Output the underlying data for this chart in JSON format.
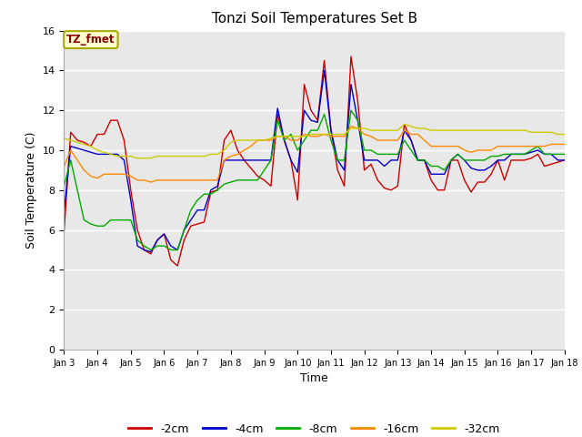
{
  "title": "Tonzi Soil Temperatures Set B",
  "xlabel": "Time",
  "ylabel": "Soil Temperature (C)",
  "ylim": [
    0,
    16
  ],
  "yticks": [
    0,
    2,
    4,
    6,
    8,
    10,
    12,
    14,
    16
  ],
  "bg_color": "#e8e8e8",
  "grid_color": "white",
  "annotation_text": "TZ_fmet",
  "annotation_color": "#8b0000",
  "annotation_bg": "#ffffcc",
  "legend_entries": [
    "-2cm",
    "-4cm",
    "-8cm",
    "-16cm",
    "-32cm"
  ],
  "line_colors": [
    "#cc0000",
    "#0000cc",
    "#00aa00",
    "#ff8800",
    "#cccc00"
  ],
  "x_tick_labels": [
    "Jan 3",
    "Jan 4",
    "Jan 5",
    "Jan 6",
    "Jan 7",
    "Jan 8",
    "Jan 9",
    "Jan 10",
    "Jan 11",
    "Jan 12",
    "Jan 13",
    "Jan 14",
    "Jan 15",
    "Jan 16",
    "Jan 17",
    "Jan 18"
  ],
  "series": {
    "neg2cm": [
      5.9,
      10.9,
      10.5,
      10.4,
      10.2,
      10.8,
      10.8,
      11.5,
      11.5,
      10.5,
      8.0,
      6.0,
      5.0,
      4.8,
      5.5,
      5.8,
      4.5,
      4.2,
      5.5,
      6.2,
      6.3,
      6.4,
      7.9,
      8.0,
      10.5,
      11.0,
      10.0,
      9.5,
      9.1,
      8.7,
      8.5,
      8.2,
      11.8,
      10.5,
      9.5,
      7.5,
      13.3,
      12.0,
      11.5,
      14.5,
      11.0,
      9.0,
      8.2,
      14.7,
      12.5,
      9.0,
      9.3,
      8.5,
      8.1,
      8.0,
      8.2,
      11.3,
      10.5,
      9.5,
      9.5,
      8.5,
      8.0,
      8.0,
      9.5,
      9.5,
      8.5,
      7.9,
      8.4,
      8.4,
      8.8,
      9.5,
      8.5,
      9.5,
      9.5,
      9.5,
      9.6,
      9.8,
      9.2,
      9.3,
      9.4,
      9.5
    ],
    "neg4cm": [
      6.9,
      10.2,
      10.1,
      10.0,
      9.9,
      9.8,
      9.8,
      9.8,
      9.8,
      9.5,
      7.5,
      5.2,
      5.0,
      4.9,
      5.5,
      5.8,
      5.2,
      5.0,
      6.0,
      6.5,
      7.0,
      7.0,
      8.0,
      8.2,
      9.5,
      9.5,
      9.5,
      9.5,
      9.5,
      9.5,
      9.5,
      9.5,
      12.1,
      10.5,
      9.5,
      8.9,
      12.0,
      11.5,
      11.4,
      14.0,
      11.0,
      9.5,
      9.0,
      13.3,
      11.5,
      9.5,
      9.5,
      9.5,
      9.2,
      9.5,
      9.5,
      11.0,
      10.5,
      9.5,
      9.5,
      8.8,
      8.8,
      8.8,
      9.5,
      9.8,
      9.5,
      9.1,
      9.0,
      9.0,
      9.2,
      9.5,
      9.5,
      9.8,
      9.8,
      9.8,
      9.9,
      10.0,
      9.8,
      9.8,
      9.5,
      9.5
    ],
    "neg8cm": [
      8.2,
      9.5,
      8.0,
      6.5,
      6.3,
      6.2,
      6.2,
      6.5,
      6.5,
      6.5,
      6.5,
      5.5,
      5.2,
      5.0,
      5.2,
      5.2,
      5.0,
      5.0,
      6.0,
      7.0,
      7.5,
      7.8,
      7.8,
      8.0,
      8.3,
      8.4,
      8.5,
      8.5,
      8.5,
      8.5,
      9.0,
      9.5,
      11.5,
      10.5,
      10.8,
      10.0,
      10.5,
      11.0,
      11.0,
      11.8,
      10.5,
      9.5,
      9.5,
      12.0,
      11.5,
      10.0,
      10.0,
      9.8,
      9.8,
      9.8,
      9.8,
      10.5,
      10.0,
      9.5,
      9.5,
      9.2,
      9.2,
      9.0,
      9.5,
      9.8,
      9.5,
      9.5,
      9.5,
      9.5,
      9.7,
      9.7,
      9.8,
      9.8,
      9.8,
      9.8,
      10.0,
      10.2,
      9.8,
      9.8,
      9.8,
      9.8
    ],
    "neg16cm": [
      9.2,
      10.0,
      9.5,
      9.0,
      8.7,
      8.6,
      8.8,
      8.8,
      8.8,
      8.8,
      8.7,
      8.5,
      8.5,
      8.4,
      8.5,
      8.5,
      8.5,
      8.5,
      8.5,
      8.5,
      8.5,
      8.5,
      8.5,
      8.5,
      9.5,
      9.7,
      9.8,
      10.0,
      10.2,
      10.5,
      10.5,
      10.5,
      10.7,
      10.7,
      10.5,
      10.5,
      10.8,
      10.7,
      10.7,
      10.8,
      10.7,
      10.7,
      10.7,
      11.2,
      11.1,
      10.8,
      10.7,
      10.5,
      10.5,
      10.5,
      10.5,
      11.0,
      10.8,
      10.8,
      10.5,
      10.2,
      10.2,
      10.2,
      10.2,
      10.2,
      10.0,
      9.9,
      10.0,
      10.0,
      10.0,
      10.2,
      10.2,
      10.2,
      10.2,
      10.2,
      10.2,
      10.2,
      10.2,
      10.3,
      10.3,
      10.3
    ],
    "neg32cm": [
      10.6,
      10.5,
      10.4,
      10.3,
      10.2,
      10.0,
      9.9,
      9.8,
      9.7,
      9.7,
      9.7,
      9.6,
      9.6,
      9.6,
      9.7,
      9.7,
      9.7,
      9.7,
      9.7,
      9.7,
      9.7,
      9.7,
      9.8,
      9.8,
      10.0,
      10.4,
      10.5,
      10.5,
      10.5,
      10.5,
      10.5,
      10.6,
      10.7,
      10.7,
      10.7,
      10.7,
      10.7,
      10.8,
      10.8,
      10.8,
      10.8,
      10.8,
      10.8,
      11.1,
      11.1,
      11.1,
      11.0,
      11.0,
      11.0,
      11.0,
      11.0,
      11.3,
      11.2,
      11.1,
      11.1,
      11.0,
      11.0,
      11.0,
      11.0,
      11.0,
      11.0,
      11.0,
      11.0,
      11.0,
      11.0,
      11.0,
      11.0,
      11.0,
      11.0,
      11.0,
      10.9,
      10.9,
      10.9,
      10.9,
      10.8,
      10.8
    ]
  }
}
